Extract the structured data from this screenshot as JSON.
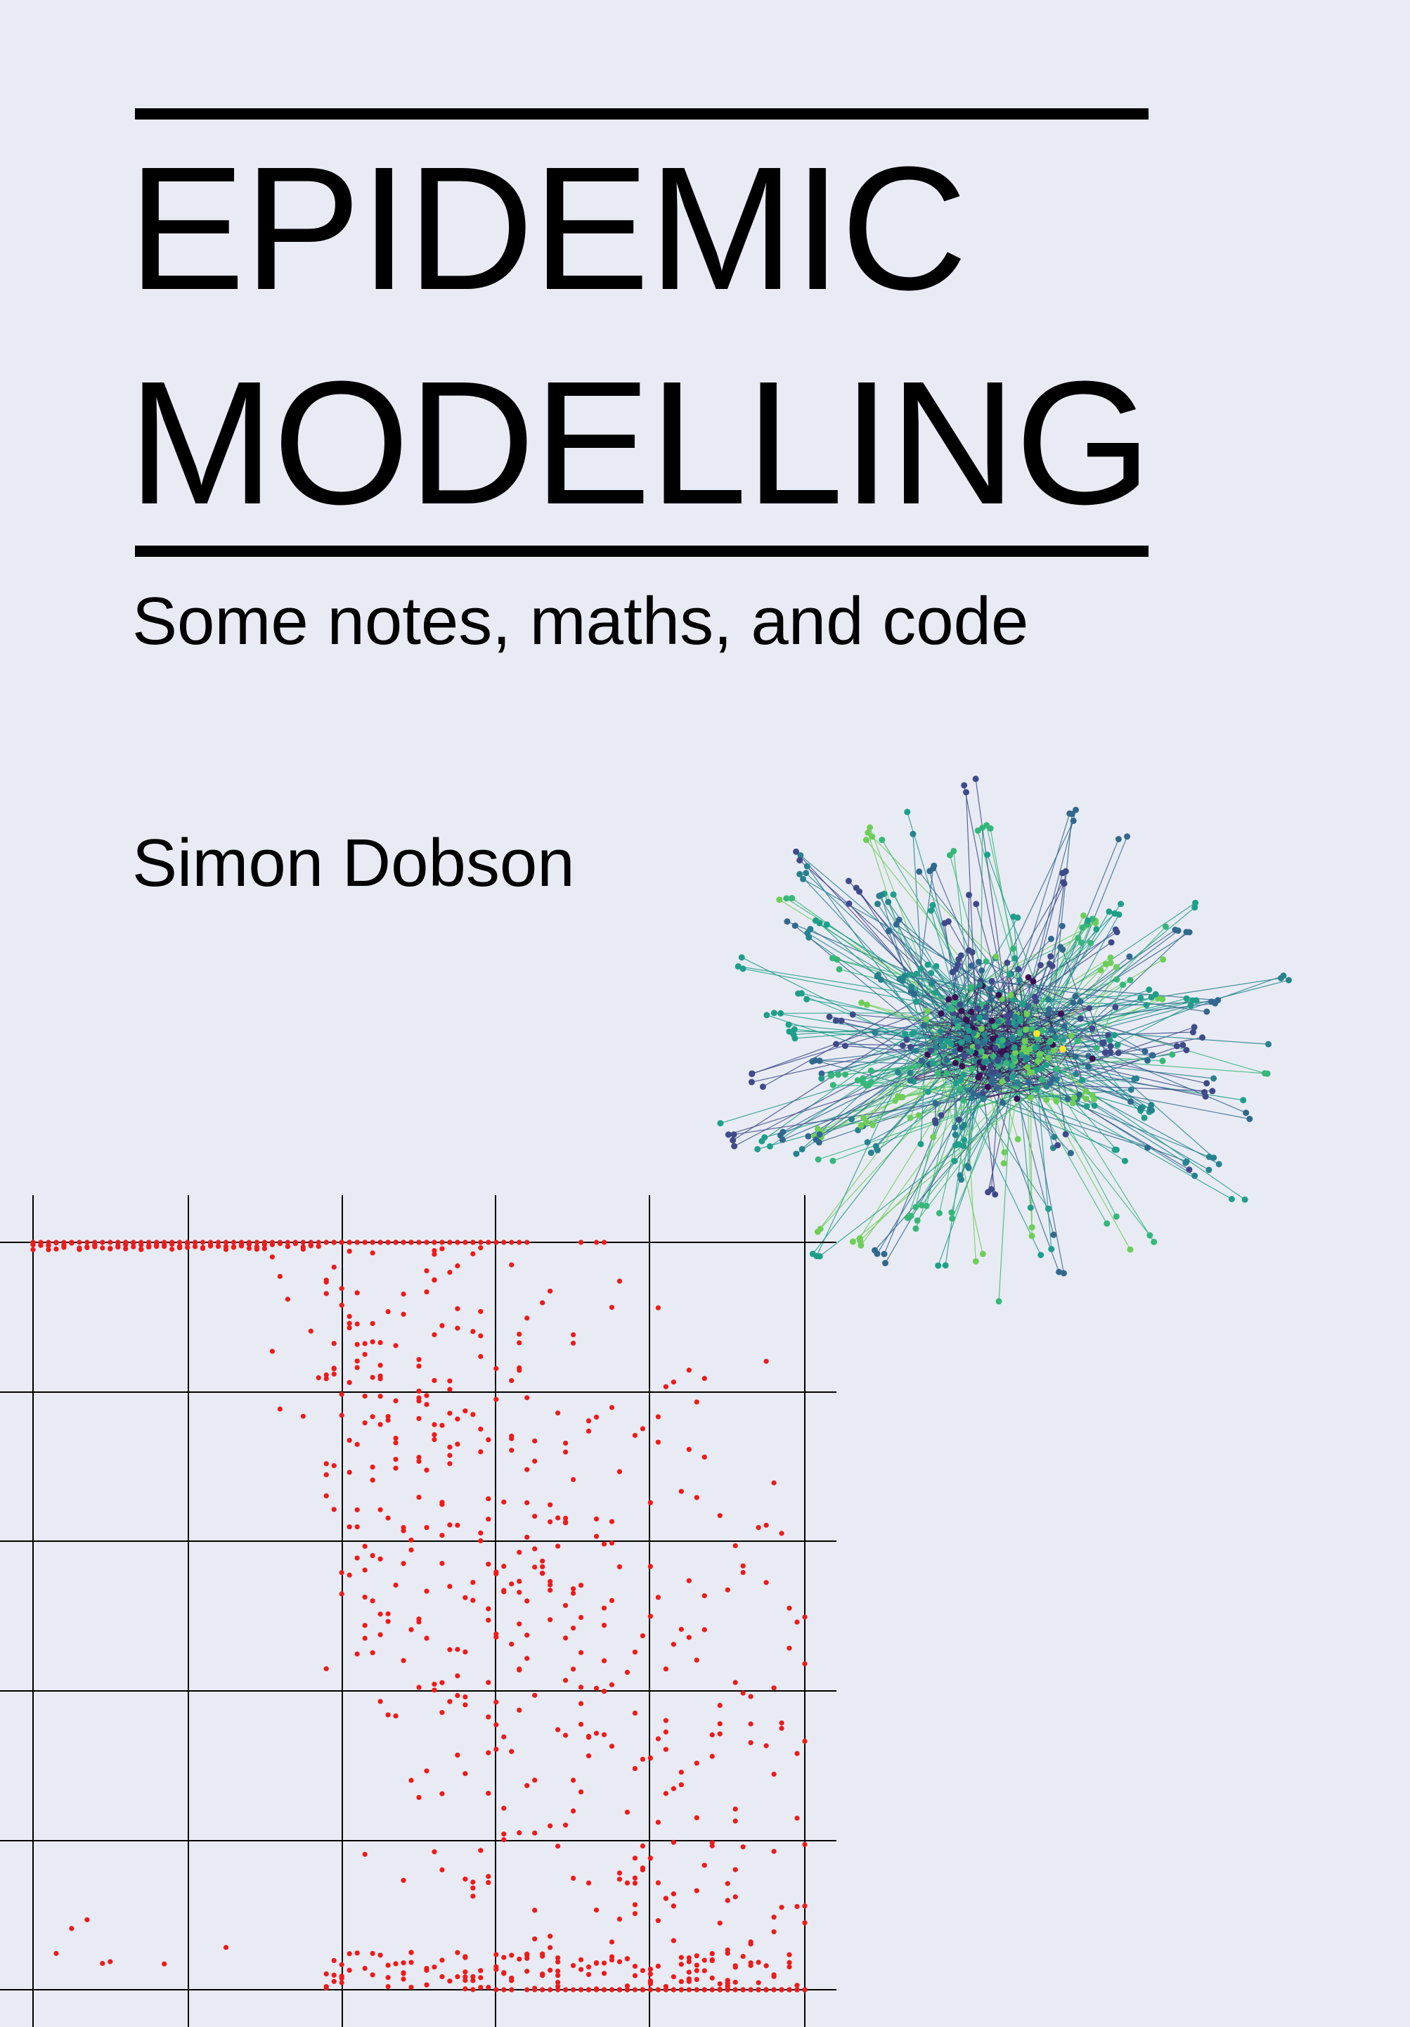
{
  "cover": {
    "title_line1": "EPIDEMIC",
    "title_line2": "MODELLING",
    "subtitle": "Some notes, maths, and code",
    "author": "Simon Dobson"
  },
  "colors": {
    "background": "#e9ebf4",
    "ink": "#000000",
    "scatter": "#ee1b1b",
    "network_palette": [
      "#3b0f52",
      "#3e4a89",
      "#31688e",
      "#26828e",
      "#1f9e89",
      "#35b779",
      "#6ece58",
      "#b5de2b",
      "#fde725"
    ]
  },
  "illustrations": {
    "network": "network-graph",
    "scatter": "scatter-plot"
  }
}
